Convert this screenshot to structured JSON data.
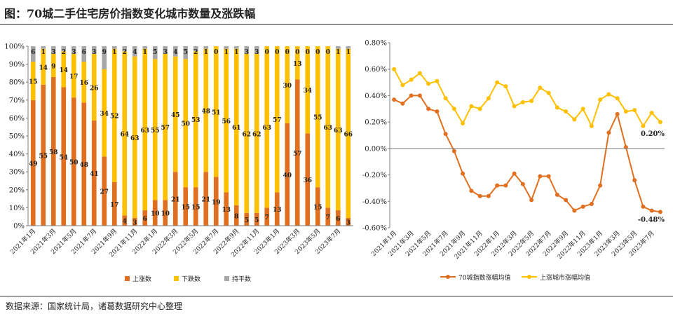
{
  "title": "图：70城二手住宅房价指数变化城市数量及涨跌幅",
  "source": "数据来源：国家统计局，诸葛数据研究中心整理",
  "colors": {
    "up": "#E07020",
    "down": "#FFC000",
    "flat": "#A6A6A6",
    "axis": "#7f7f7f",
    "grid": "#d9d9d9",
    "label": "#222222"
  },
  "chart_data": [
    {
      "type": "bar",
      "stacked": true,
      "percent": true,
      "categories": [
        "2021年1月",
        "2021年2月",
        "2021年3月",
        "2021年4月",
        "2021年5月",
        "2021年6月",
        "2021年7月",
        "2021年8月",
        "2021年9月",
        "2021年10月",
        "2021年11月",
        "2021年12月",
        "2022年1月",
        "2022年2月",
        "2022年3月",
        "2022年4月",
        "2022年5月",
        "2022年6月",
        "2022年7月",
        "2022年8月",
        "2022年9月",
        "2022年10月",
        "2022年11月",
        "2022年12月",
        "2023年1月",
        "2023年2月",
        "2023年3月",
        "2023年4月",
        "2023年5月",
        "2023年6月",
        "2023年7月",
        "2023年8月"
      ],
      "x_tick_labels": [
        "2021年1月",
        "2021年3月",
        "2021年5月",
        "2021年7月",
        "2021年9月",
        "2021年11月",
        "2022年1月",
        "2022年3月",
        "2022年5月",
        "2022年7月",
        "2022年9月",
        "2022年11月",
        "2023年1月",
        "2023年3月",
        "2023年5月",
        "2023年7月"
      ],
      "y_tick_labels": [
        "0%",
        "10%",
        "20%",
        "30%",
        "40%",
        "50%",
        "60%",
        "70%",
        "80%",
        "90%",
        "100%"
      ],
      "series": [
        {
          "name": "上涨数",
          "values": [
            49,
            55,
            58,
            54,
            50,
            48,
            41,
            27,
            17,
            4,
            3,
            6,
            10,
            10,
            21,
            15,
            15,
            21,
            19,
            13,
            8,
            5,
            5,
            7,
            13,
            40,
            57,
            36,
            15,
            7,
            6,
            3
          ]
        },
        {
          "name": "下跌数",
          "values": [
            15,
            14,
            9,
            14,
            17,
            16,
            26,
            34,
            52,
            64,
            63,
            63,
            55,
            57,
            45,
            50,
            53,
            48,
            51,
            56,
            61,
            62,
            62,
            63,
            57,
            30,
            13,
            34,
            55,
            63,
            63,
            66
          ]
        },
        {
          "name": "持平数",
          "values": [
            6,
            1,
            3,
            2,
            3,
            6,
            3,
            9,
            1,
            2,
            4,
            1,
            5,
            3,
            4,
            5,
            2,
            1,
            0,
            1,
            1,
            3,
            3,
            0,
            0,
            0,
            0,
            0,
            0,
            0,
            1,
            1
          ]
        }
      ],
      "legend_position": "bottom"
    },
    {
      "type": "line",
      "x_tick_labels": [
        "2021年1月",
        "2021年3月",
        "2021年5月",
        "2021年7月",
        "2021年9月",
        "2021年11月",
        "2022年1月",
        "2022年3月",
        "2022年5月",
        "2022年7月",
        "2022年9月",
        "2022年11月",
        "2023年1月",
        "2023年3月",
        "2023年5月",
        "2023年7月"
      ],
      "y_tick_labels": [
        "-0.60%",
        "-0.40%",
        "-0.20%",
        "0.00%",
        "0.20%",
        "0.40%",
        "0.60%",
        "0.80%"
      ],
      "ylim": [
        -0.6,
        0.8
      ],
      "series": [
        {
          "name": "70城指数涨幅均值",
          "values": [
            0.37,
            0.34,
            0.4,
            0.4,
            0.3,
            0.28,
            0.11,
            -0.02,
            -0.19,
            -0.32,
            -0.36,
            -0.36,
            -0.28,
            -0.28,
            -0.19,
            -0.27,
            -0.39,
            -0.21,
            -0.21,
            -0.35,
            -0.39,
            -0.47,
            -0.44,
            -0.42,
            -0.28,
            0.12,
            0.26,
            0.01,
            -0.24,
            -0.44,
            -0.47,
            -0.48
          ]
        },
        {
          "name": "上涨城市涨幅均值",
          "values": [
            0.6,
            0.48,
            0.52,
            0.57,
            0.49,
            0.51,
            0.38,
            0.3,
            0.19,
            0.32,
            0.3,
            0.38,
            0.5,
            0.47,
            0.32,
            0.35,
            0.36,
            0.46,
            0.42,
            0.31,
            0.28,
            0.22,
            0.3,
            0.17,
            0.37,
            0.41,
            0.38,
            0.28,
            0.29,
            0.17,
            0.27,
            0.2
          ]
        }
      ],
      "end_labels": [
        "-0.48%",
        "0.20%"
      ],
      "legend_position": "bottom"
    }
  ]
}
